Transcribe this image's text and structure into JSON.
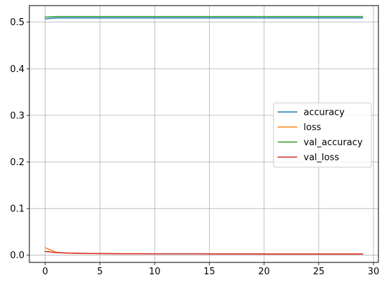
{
  "chart_data": {
    "type": "line",
    "title": "",
    "xlabel": "",
    "ylabel": "",
    "xlim": [
      -1.45,
      30.45
    ],
    "ylim": [
      -0.0155,
      0.5355
    ],
    "grid": true,
    "legend_position": "center-right",
    "x_ticks": [
      0,
      5,
      10,
      15,
      20,
      25,
      30
    ],
    "y_ticks": [
      0.0,
      0.1,
      0.2,
      0.3,
      0.4,
      0.5
    ],
    "x_tick_labels": [
      "0",
      "5",
      "10",
      "15",
      "20",
      "25",
      "30"
    ],
    "y_tick_labels": [
      "0.0",
      "0.1",
      "0.2",
      "0.3",
      "0.4",
      "0.5"
    ],
    "x": [
      0,
      1,
      2,
      3,
      4,
      5,
      6,
      7,
      8,
      9,
      10,
      11,
      12,
      13,
      14,
      15,
      16,
      17,
      18,
      19,
      20,
      21,
      22,
      23,
      24,
      25,
      26,
      27,
      28,
      29
    ],
    "series": [
      {
        "name": "accuracy",
        "color": "#1f77b4",
        "values": [
          0.507,
          0.509,
          0.509,
          0.509,
          0.509,
          0.509,
          0.509,
          0.509,
          0.509,
          0.509,
          0.509,
          0.509,
          0.509,
          0.509,
          0.509,
          0.509,
          0.509,
          0.509,
          0.509,
          0.509,
          0.509,
          0.509,
          0.509,
          0.509,
          0.509,
          0.509,
          0.509,
          0.509,
          0.509,
          0.509
        ]
      },
      {
        "name": "loss",
        "color": "#ff7f0e",
        "values": [
          0.016,
          0.006,
          0.0045,
          0.004,
          0.0036,
          0.0034,
          0.0032,
          0.0031,
          0.003,
          0.003,
          0.0029,
          0.0029,
          0.0028,
          0.0028,
          0.0028,
          0.0027,
          0.0027,
          0.0027,
          0.0027,
          0.0027,
          0.0026,
          0.0026,
          0.0026,
          0.0026,
          0.0026,
          0.0026,
          0.0026,
          0.0026,
          0.0026,
          0.0026
        ]
      },
      {
        "name": "val_accuracy",
        "color": "#2ca02c",
        "values": [
          0.511,
          0.512,
          0.512,
          0.512,
          0.512,
          0.512,
          0.512,
          0.512,
          0.512,
          0.512,
          0.512,
          0.512,
          0.512,
          0.512,
          0.512,
          0.512,
          0.512,
          0.512,
          0.512,
          0.512,
          0.512,
          0.512,
          0.512,
          0.512,
          0.512,
          0.512,
          0.512,
          0.512,
          0.512,
          0.512
        ]
      },
      {
        "name": "val_loss",
        "color": "#d62728",
        "values": [
          0.008,
          0.0055,
          0.0045,
          0.004,
          0.0037,
          0.0034,
          0.0032,
          0.0031,
          0.003,
          0.003,
          0.0029,
          0.0029,
          0.0028,
          0.0028,
          0.0028,
          0.0027,
          0.0027,
          0.0027,
          0.0027,
          0.0027,
          0.0026,
          0.0026,
          0.0026,
          0.0026,
          0.0026,
          0.0026,
          0.0026,
          0.0026,
          0.0026,
          0.0026
        ]
      }
    ]
  }
}
